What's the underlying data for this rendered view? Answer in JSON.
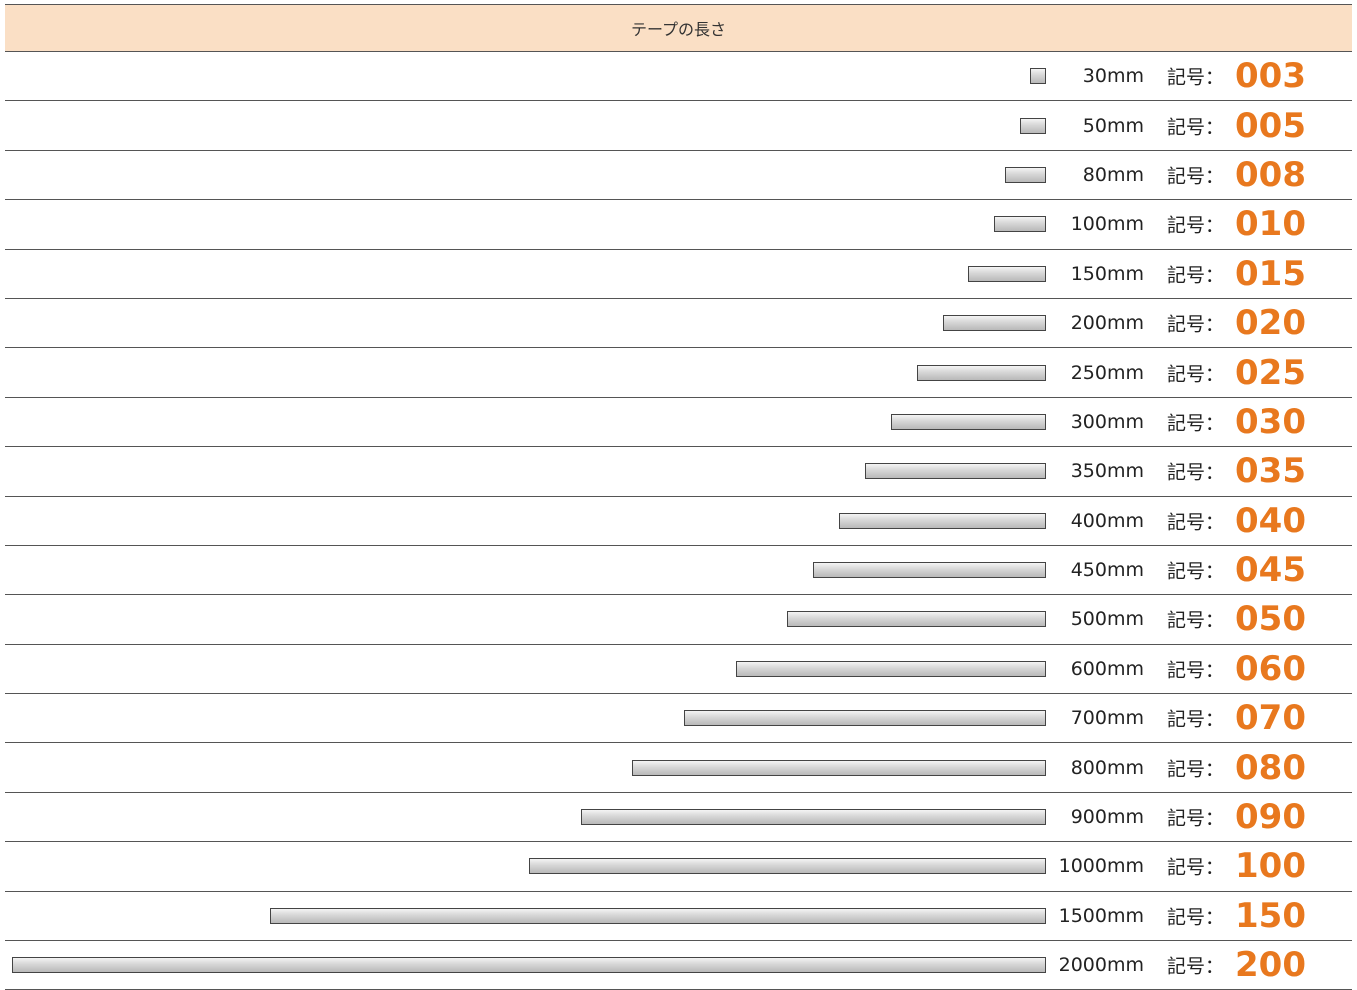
{
  "header": {
    "title": "テープの長さ"
  },
  "symbol_label": "記号：",
  "accent_color": "#e8781e",
  "header_bg": "#fadfc5",
  "rows": [
    {
      "length_mm": 30,
      "length_label": "30mm",
      "code": "003"
    },
    {
      "length_mm": 50,
      "length_label": "50mm",
      "code": "005"
    },
    {
      "length_mm": 80,
      "length_label": "80mm",
      "code": "008"
    },
    {
      "length_mm": 100,
      "length_label": "100mm",
      "code": "010"
    },
    {
      "length_mm": 150,
      "length_label": "150mm",
      "code": "015"
    },
    {
      "length_mm": 200,
      "length_label": "200mm",
      "code": "020"
    },
    {
      "length_mm": 250,
      "length_label": "250mm",
      "code": "025"
    },
    {
      "length_mm": 300,
      "length_label": "300mm",
      "code": "030"
    },
    {
      "length_mm": 350,
      "length_label": "350mm",
      "code": "035"
    },
    {
      "length_mm": 400,
      "length_label": "400mm",
      "code": "040"
    },
    {
      "length_mm": 450,
      "length_label": "450mm",
      "code": "045"
    },
    {
      "length_mm": 500,
      "length_label": "500mm",
      "code": "050"
    },
    {
      "length_mm": 600,
      "length_label": "600mm",
      "code": "060"
    },
    {
      "length_mm": 700,
      "length_label": "700mm",
      "code": "070"
    },
    {
      "length_mm": 800,
      "length_label": "800mm",
      "code": "080"
    },
    {
      "length_mm": 900,
      "length_label": "900mm",
      "code": "090"
    },
    {
      "length_mm": 1000,
      "length_label": "1000mm",
      "code": "100"
    },
    {
      "length_mm": 1500,
      "length_label": "1500mm",
      "code": "150"
    },
    {
      "length_mm": 2000,
      "length_label": "2000mm",
      "code": "200"
    }
  ]
}
